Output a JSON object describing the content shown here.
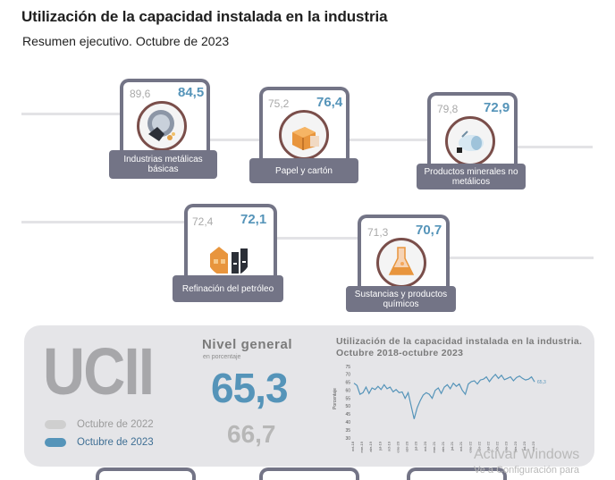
{
  "header": {
    "title": "Utilización de la capacidad instalada en la industria",
    "subtitle": "Resumen ejecutivo. Octubre de 2023"
  },
  "sectors": [
    {
      "label": "Industrias metálicas básicas",
      "prev": "89,6",
      "current": "84,5",
      "icon": "metal-industry-icon"
    },
    {
      "label": "Papel y cartón",
      "prev": "75,2",
      "current": "76,4",
      "icon": "paper-box-icon"
    },
    {
      "label": "Productos minerales no metálicos",
      "prev": "79,8",
      "current": "72,9",
      "icon": "mineral-products-icon"
    },
    {
      "label": "Refinación del petróleo",
      "prev": "72,4",
      "current": "72,1",
      "icon": "oil-refinery-icon"
    },
    {
      "label": "Sustancias y productos químicos",
      "prev": "71,3",
      "current": "70,7",
      "icon": "chemical-flask-icon"
    }
  ],
  "summary": {
    "ucii": "UCII",
    "nivel_title": "Nivel general",
    "nivel_sub": "en porcentaje",
    "current_value": "65,3",
    "prev_value": "66,7",
    "legend": [
      {
        "label": "Octubre de 2022",
        "color": "#cfcfcf"
      },
      {
        "label": "Octubre de 2023",
        "color": "#5594b9"
      }
    ]
  },
  "colors": {
    "accent": "#5594b9",
    "card_border": "#737486",
    "muted": "#a9a9a9",
    "panel": "#e5e5e8"
  },
  "watermark": {
    "line1": "Activar Windows",
    "line2": "Ve a Configuración para"
  },
  "chart_data": {
    "type": "line",
    "title": "Utilización de la capacidad instalada en la industria. Octubre 2018-octubre 2023",
    "ylabel": "Porcentaje",
    "xlabel": "",
    "ylim": [
      30,
      75
    ],
    "yticks": [
      30,
      35,
      40,
      45,
      50,
      55,
      60,
      65,
      70,
      75
    ],
    "xtick_labels": [
      "oct-18",
      "ene-19",
      "abr-19",
      "jul-19",
      "oct-19",
      "ene-20",
      "abr-20",
      "jul-20",
      "oct-20",
      "ene-21",
      "abr-21",
      "jul-21",
      "oct-21",
      "ene-22",
      "abr-22",
      "jul-22",
      "oct-22",
      "ene-23",
      "abr-23",
      "jul-23",
      "oct-23"
    ],
    "end_label": "65,3",
    "series": [
      {
        "values": [
          64.5,
          63.0,
          57.5,
          58.5,
          62.0,
          58.0,
          61.5,
          60.5,
          62.5,
          60.5,
          63.5,
          61.0,
          62.0,
          59.0,
          60.5,
          58.5,
          59.0,
          55.0,
          58.5,
          50.0,
          42.0,
          49.0,
          53.5,
          57.0,
          58.5,
          57.5,
          55.0,
          60.0,
          61.5,
          58.0,
          62.0,
          63.5,
          61.0,
          64.5,
          62.5,
          64.0,
          60.0,
          57.5,
          64.0,
          65.5,
          66.0,
          64.0,
          66.5,
          67.0,
          68.5,
          65.5,
          68.0,
          70.0,
          67.5,
          69.5,
          66.7,
          67.5,
          68.5,
          66.0,
          68.0,
          69.0,
          67.5,
          66.5,
          67.0,
          68.5,
          65.3
        ]
      }
    ]
  }
}
